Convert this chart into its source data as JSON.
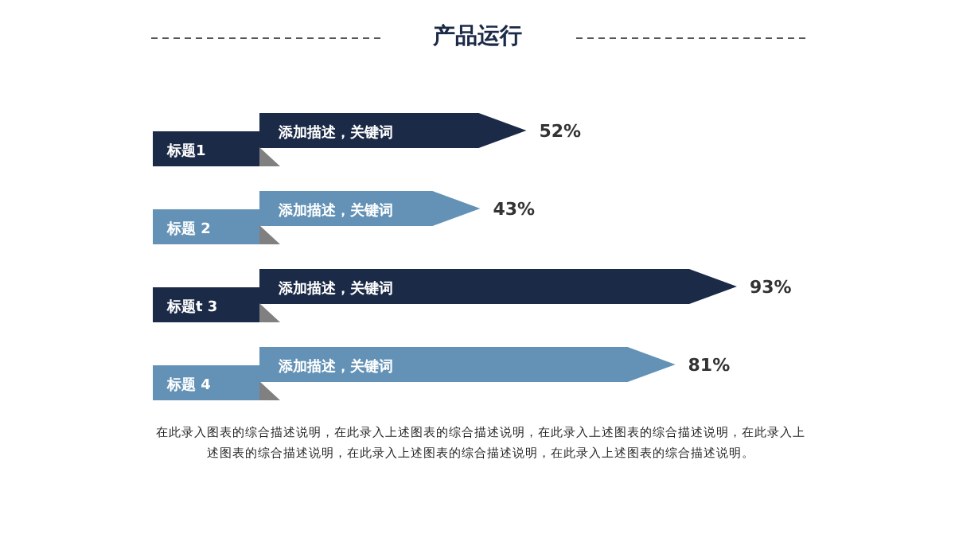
{
  "chart_data": {
    "type": "bar",
    "orientation": "horizontal",
    "title": "产品运行",
    "categories": [
      "标题1",
      "标题 2",
      "标题t 3",
      "标题 4"
    ],
    "values": [
      52,
      43,
      93,
      81
    ],
    "value_labels": [
      "52%",
      "43%",
      "93%",
      "81%"
    ],
    "colors": [
      "#1b2a47",
      "#6392b6",
      "#1b2a47",
      "#6392b6"
    ],
    "annotations": [
      {
        "text": "添加描述，关键词",
        "y": "标题1"
      },
      {
        "text": "添加描述，关键词",
        "y": "标题 2"
      },
      {
        "text": "添加描述，关键词",
        "y": "标题t 3"
      },
      {
        "text": "添加描述，关键词",
        "y": "标题 4"
      },
      "在此录入图表的综合描述说明，在此录入上述图表的综合描述说明，在此录入上述图表的综合描述说明，在此录入上述图表的综合描述说明，在此录入上述图表的综合描述说明，在此录入上述图表的综合描述说明。"
    ]
  }
}
